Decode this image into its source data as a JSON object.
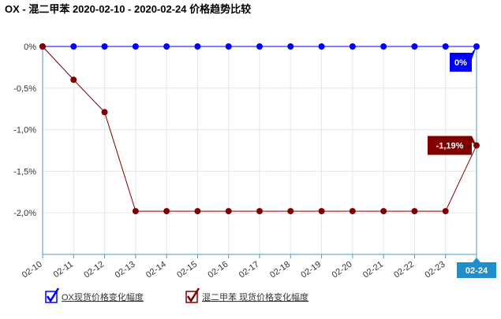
{
  "chart_data": {
    "type": "line",
    "title": "OX - 混二甲苯 2020-02-10 - 2020-02-24 价格趋势比较",
    "categories": [
      "02-10",
      "02-11",
      "02-12",
      "02-13",
      "02-14",
      "02-15",
      "02-16",
      "02-17",
      "02-18",
      "02-19",
      "02-20",
      "02-21",
      "02-22",
      "02-23",
      "02-24"
    ],
    "series": [
      {
        "name": "OX现货价格变化幅度",
        "color": "#0000ff",
        "values": [
          0,
          0,
          0,
          0,
          0,
          0,
          0,
          0,
          0,
          0,
          0,
          0,
          0,
          0,
          0
        ],
        "value_labels": [
          null,
          null,
          null,
          null,
          null,
          null,
          null,
          null,
          null,
          null,
          null,
          null,
          null,
          null,
          "0%"
        ]
      },
      {
        "name": "混二甲苯 现货价格变化幅度",
        "color": "#800000",
        "values": [
          0,
          -0.4,
          -0.79,
          -1.98,
          -1.98,
          -1.98,
          -1.98,
          -1.98,
          -1.98,
          -1.98,
          -1.98,
          -1.98,
          -1.98,
          -1.98,
          -1.19
        ],
        "value_labels": [
          null,
          null,
          null,
          null,
          null,
          null,
          null,
          null,
          null,
          null,
          null,
          null,
          null,
          null,
          "-1,19%"
        ]
      }
    ],
    "ylim": [
      -2.5,
      0
    ],
    "yticks": [
      {
        "value": 0,
        "label": "0%"
      },
      {
        "value": -0.5,
        "label": "-0,5%"
      },
      {
        "value": -1,
        "label": "-1,0%"
      },
      {
        "value": -1.5,
        "label": "-1,5%"
      },
      {
        "value": -2,
        "label": "-2,0%"
      }
    ],
    "grid": true
  }
}
